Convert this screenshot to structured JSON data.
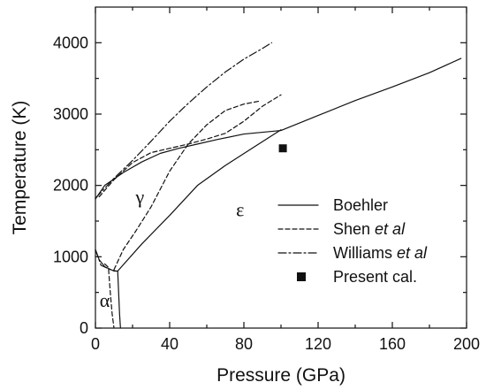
{
  "chart_data": {
    "type": "line",
    "xlabel": "Pressure (GPa)",
    "ylabel": "Temperature (K)",
    "xlim": [
      0,
      200
    ],
    "ylim": [
      0,
      4500
    ],
    "xticks": [
      0,
      40,
      80,
      120,
      160,
      200
    ],
    "yticks": [
      0,
      1000,
      2000,
      3000,
      4000
    ],
    "grid": false,
    "legend_position": "right-middle",
    "series": [
      {
        "name": "Boehler",
        "style": "solid",
        "segments": [
          {
            "x": [
              0,
              5,
              15,
              25,
              35,
              45,
              55,
              65,
              80,
              100,
              120,
              140,
              160,
              180,
              197
            ],
            "y": [
              1810,
              2000,
              2180,
              2330,
              2450,
              2520,
              2580,
              2640,
              2720,
              2770,
              2980,
              3190,
              3380,
              3580,
              3780
            ]
          },
          {
            "x": [
              0,
              2,
              5,
              10,
              12
            ],
            "y": [
              1100,
              960,
              860,
              800,
              800
            ]
          },
          {
            "x": [
              12,
              25,
              40,
              55,
              70,
              85,
              100
            ],
            "y": [
              800,
              1180,
              1580,
              2000,
              2280,
              2530,
              2780
            ]
          },
          {
            "x": [
              12,
              12.5,
              13,
              13.5
            ],
            "y": [
              800,
              500,
              200,
              0
            ]
          }
        ]
      },
      {
        "name": "Shen et al",
        "style": "dashed",
        "segments": [
          {
            "x": [
              2,
              10,
              20,
              30,
              40,
              50,
              60,
              70,
              80,
              90,
              100
            ],
            "y": [
              1840,
              2080,
              2320,
              2460,
              2520,
              2580,
              2650,
              2730,
              2900,
              3110,
              3270
            ]
          },
          {
            "x": [
              10,
              15,
              22,
              30,
              40,
              50,
              60,
              70,
              80,
              88
            ],
            "y": [
              820,
              1100,
              1370,
              1700,
              2200,
              2580,
              2850,
              3050,
              3140,
              3180
            ]
          },
          {
            "x": [
              5,
              7,
              8,
              9,
              10
            ],
            "y": [
              900,
              850,
              500,
              200,
              0
            ]
          }
        ]
      },
      {
        "name": "Williams et al",
        "style": "dash-dot",
        "segments": [
          {
            "x": [
              0,
              10,
              20,
              30,
              40,
              50,
              60,
              70,
              80,
              90,
              95
            ],
            "y": [
              1820,
              2100,
              2350,
              2620,
              2900,
              3150,
              3380,
              3590,
              3770,
              3920,
              4000
            ]
          },
          {
            "x": [
              0,
              3,
              8,
              11
            ],
            "y": [
              1100,
              880,
              820,
              800
            ]
          }
        ]
      }
    ],
    "points": [
      {
        "name": "Present cal.",
        "marker": "filled-square",
        "x": 101,
        "y": 2520
      }
    ],
    "annotations": [
      {
        "text": "γ",
        "x": 24,
        "y": 1750
      },
      {
        "text": "ε",
        "x": 78,
        "y": 1570
      },
      {
        "text": "α",
        "x": 5,
        "y": 300
      }
    ],
    "legend": [
      {
        "label": "Boehler",
        "style": "solid"
      },
      {
        "label": "Shen",
        "suffix": "et al",
        "style": "dashed"
      },
      {
        "label": "Williams",
        "suffix": "et al",
        "style": "dash-dot"
      },
      {
        "label": "Present cal.",
        "style": "marker"
      }
    ]
  }
}
